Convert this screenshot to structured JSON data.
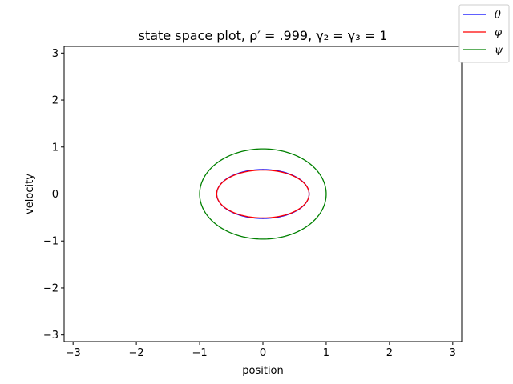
{
  "chart_data": {
    "type": "line",
    "title": "state space plot, ρ′ = .999, γ₂ = γ₃ = 1",
    "xlabel": "position",
    "ylabel": "velocity",
    "xlim": [
      -3.1416,
      3.1416
    ],
    "ylim": [
      -3.1416,
      3.1416
    ],
    "xticks": [
      -3,
      -2,
      -1,
      0,
      1,
      2,
      3
    ],
    "yticks": [
      -3,
      -2,
      -1,
      0,
      1,
      2,
      3
    ],
    "grid": false,
    "legend_position": "top-right",
    "series": [
      {
        "name": "θ",
        "color": "#0000ff",
        "shape": "ellipse",
        "center": [
          0,
          0
        ],
        "x_amplitude": 0.73,
        "y_amplitude": 0.52
      },
      {
        "name": "φ",
        "color": "#ff0000",
        "shape": "ellipse",
        "center": [
          0,
          0
        ],
        "x_amplitude": 0.73,
        "y_amplitude": 0.51
      },
      {
        "name": "ψ",
        "color": "#008000",
        "shape": "ellipse",
        "center": [
          0,
          0
        ],
        "x_amplitude": 1.0,
        "y_amplitude": 0.96
      }
    ]
  }
}
